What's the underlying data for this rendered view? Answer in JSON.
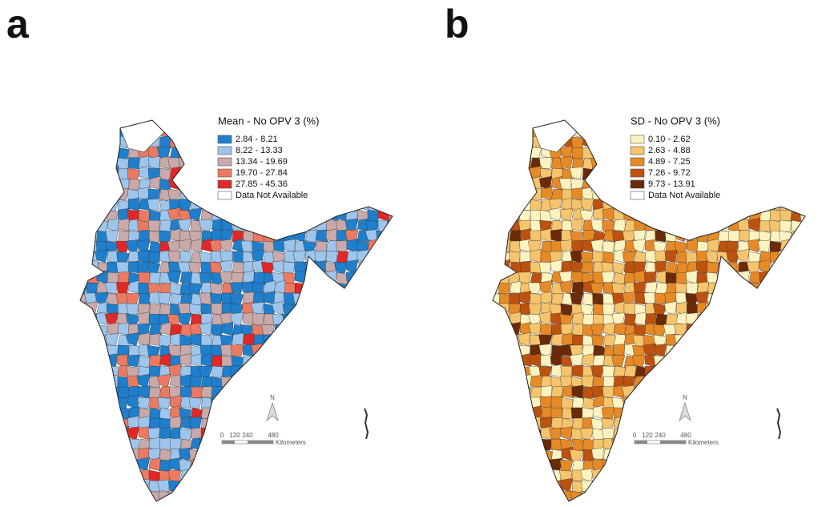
{
  "panels": [
    {
      "label": "a",
      "legend": {
        "title": "Mean - No OPV 3 (%)",
        "items": [
          {
            "label": "2.84 - 8.21",
            "color": "#1f7fcc"
          },
          {
            "label": "8.22 - 13.33",
            "color": "#9ec5ec"
          },
          {
            "label": "13.34 - 19.69",
            "color": "#c9a9a9"
          },
          {
            "label": "19.70 - 27.84",
            "color": "#ec7a62"
          },
          {
            "label": "27.85 - 45.36",
            "color": "#e02828"
          },
          {
            "label": "Data Not Available",
            "color": "#ffffff"
          }
        ]
      },
      "scale": {
        "ticks": [
          "0",
          "120",
          "240",
          "480"
        ],
        "unit": "Kilometers"
      },
      "north": "N"
    },
    {
      "label": "b",
      "legend": {
        "title": "SD - No OPV 3 (%)",
        "items": [
          {
            "label": "0.10 - 2.62",
            "color": "#fdf3c0"
          },
          {
            "label": "2.63 - 4.88",
            "color": "#f5c46c"
          },
          {
            "label": "4.89 - 7.25",
            "color": "#e58a26"
          },
          {
            "label": "7.26 - 9.72",
            "color": "#bd5210"
          },
          {
            "label": "9.73 - 13.91",
            "color": "#6b2a08"
          },
          {
            "label": "Data Not Available",
            "color": "#ffffff"
          }
        ]
      },
      "scale": {
        "ticks": [
          "0",
          "120",
          "240",
          "480"
        ],
        "unit": "Kilometers"
      },
      "north": "N"
    }
  ]
}
